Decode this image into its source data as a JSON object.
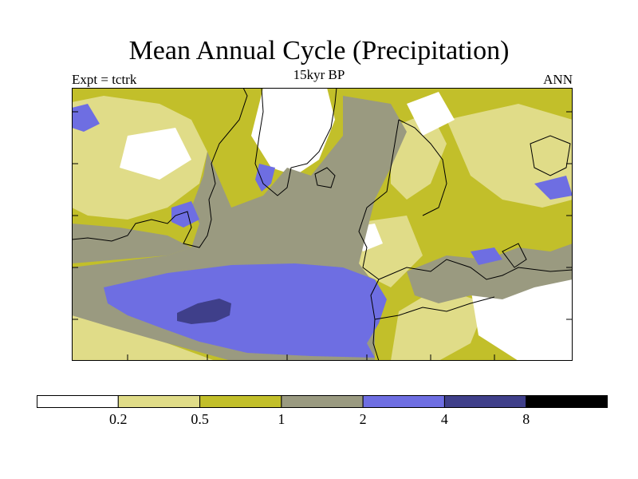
{
  "header": {
    "title": "Mean Annual Cycle (Precipitation)",
    "subtitle": "15kyr BP",
    "left_label": "Expt = tctrk",
    "right_label": "ANN"
  },
  "colors": {
    "bin_lt_0_2": "#ffffff",
    "bin_0_2_0_5": "#e0dc88",
    "bin_0_5_1": "#c2bf2a",
    "bin_1_2": "#9a9a80",
    "bin_2_4": "#6e6ee2",
    "bin_4_8": "#3f3f8a",
    "bin_gt_8": "#000000",
    "coast": "#000000"
  },
  "legend": {
    "labels": [
      "0.2",
      "0.5",
      "1",
      "2",
      "4",
      "8"
    ],
    "colors": [
      "#ffffff",
      "#e0dc88",
      "#c2bf2a",
      "#9a9a80",
      "#6e6ee2",
      "#3f3f8a",
      "#000000"
    ]
  }
}
